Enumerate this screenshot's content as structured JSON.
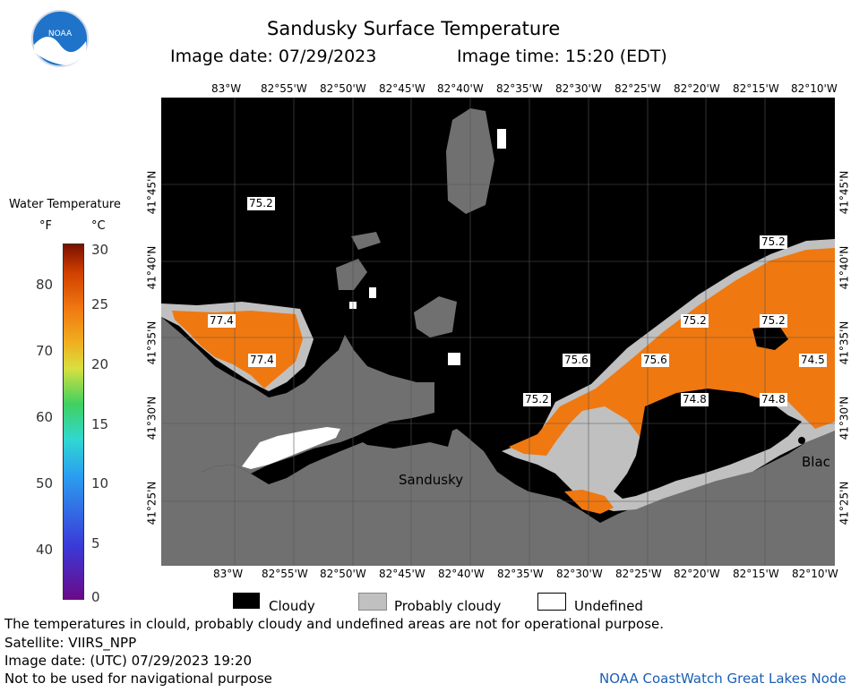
{
  "header": {
    "title": "Sandusky Surface Temperature",
    "image_date": "Image date: 07/29/2023",
    "image_time": "Image time: 15:20 (EDT)"
  },
  "logo": {
    "text": "NOAA"
  },
  "lon_ticks": [
    "83°W",
    "82°55'W",
    "82°50'W",
    "82°45'W",
    "82°40'W",
    "82°35'W",
    "82°30'W",
    "82°25'W",
    "82°20'W",
    "82°15'W",
    "82°10'W"
  ],
  "lat_ticks": [
    "41°45'N",
    "41°40'N",
    "41°35'N",
    "41°30'N",
    "41°25'N"
  ],
  "legend": {
    "title": "Water Temperature",
    "unit_f": "°F",
    "unit_c": "°C",
    "f_labels": [
      "80",
      "70",
      "60",
      "50",
      "40"
    ],
    "c_labels": [
      "30",
      "25",
      "20",
      "15",
      "10",
      "5",
      "0"
    ],
    "colors": [
      "#6a0a8a",
      "#3a3ad8",
      "#2aa0f0",
      "#30d8d0",
      "#40d060",
      "#d8e040",
      "#f0b020",
      "#f07810",
      "#d04000",
      "#7a1000"
    ]
  },
  "map_labels": [
    {
      "id": "t1",
      "text": "75.2"
    },
    {
      "id": "t2",
      "text": "77.4"
    },
    {
      "id": "t3",
      "text": "77.4"
    },
    {
      "id": "t4",
      "text": "75.2"
    },
    {
      "id": "t5",
      "text": "75.2"
    },
    {
      "id": "t6",
      "text": "75.2"
    },
    {
      "id": "t7",
      "text": "75.6"
    },
    {
      "id": "t8",
      "text": "75.6"
    },
    {
      "id": "t9",
      "text": "74.5"
    },
    {
      "id": "t10",
      "text": "75.2"
    },
    {
      "id": "t11",
      "text": "74.8"
    },
    {
      "id": "t12",
      "text": "74.8"
    }
  ],
  "places": {
    "sandusky": "Sandusky",
    "blac": "Blac"
  },
  "key": {
    "cloudy": "Cloudy",
    "probably_cloudy": "Probably cloudy",
    "undefined": "Undefined"
  },
  "footer": {
    "disclaimer": "The temperatures in clould, probably cloudy and undefined areas are not for operational purpose.",
    "satellite": "Satellite: VIIRS_NPP",
    "utc_date": "Image date: (UTC) 07/29/2023  19:20",
    "nav_warning": "Not to be used for navigational purpose",
    "credit": "NOAA CoastWatch Great Lakes Node"
  },
  "colors": {
    "cloud": "#000000",
    "probably_cloudy": "#c0c0c0",
    "land": "#707070",
    "warm_water": "#f07810",
    "credit": "#1a5fb4"
  }
}
